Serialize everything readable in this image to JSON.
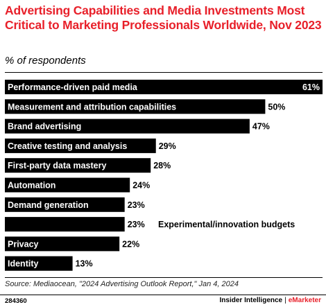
{
  "header": {
    "title": "Advertising Capabilities and Media Investments Most Critical to Marketing Professionals Worldwide, Nov 2023",
    "subtitle": "% of respondents"
  },
  "chart_data": {
    "type": "bar",
    "orientation": "horizontal",
    "categories": [
      "Performance-driven paid media",
      "Measurement and attribution capabilities",
      "Brand advertising",
      "Creative testing and analysis",
      "First-party data mastery",
      "Automation",
      "Demand generation",
      "",
      "Privacy",
      "Identity"
    ],
    "values": [
      61,
      50,
      47,
      29,
      28,
      24,
      23,
      23,
      22,
      13
    ],
    "value_labels": [
      "61%",
      "50%",
      "47%",
      "29%",
      "28%",
      "24%",
      "23%",
      "23%",
      "22%",
      "13%"
    ],
    "annotations": [
      {
        "category_index": 7,
        "text": "Experimental/innovation budgets"
      }
    ],
    "title": "Advertising Capabilities and Media Investments Most Critical to Marketing Professionals Worldwide, Nov 2023",
    "xlabel": "",
    "ylabel": "",
    "xlim": [
      0,
      61
    ],
    "grid": false,
    "legend": "none",
    "colors": {
      "bar": "#000000",
      "label_on_bar": "#ffffff",
      "value": "#000000"
    }
  },
  "footer": {
    "source": "Source: Mediaocean, \"2024 Advertising Outlook Report,\" Jan 4, 2024",
    "chart_id": "284360",
    "brand_left": "Insider Intelligence",
    "brand_sep": "|",
    "brand_right": "eMarketer"
  },
  "colors": {
    "accent": "#e8202a",
    "text": "#000000"
  }
}
